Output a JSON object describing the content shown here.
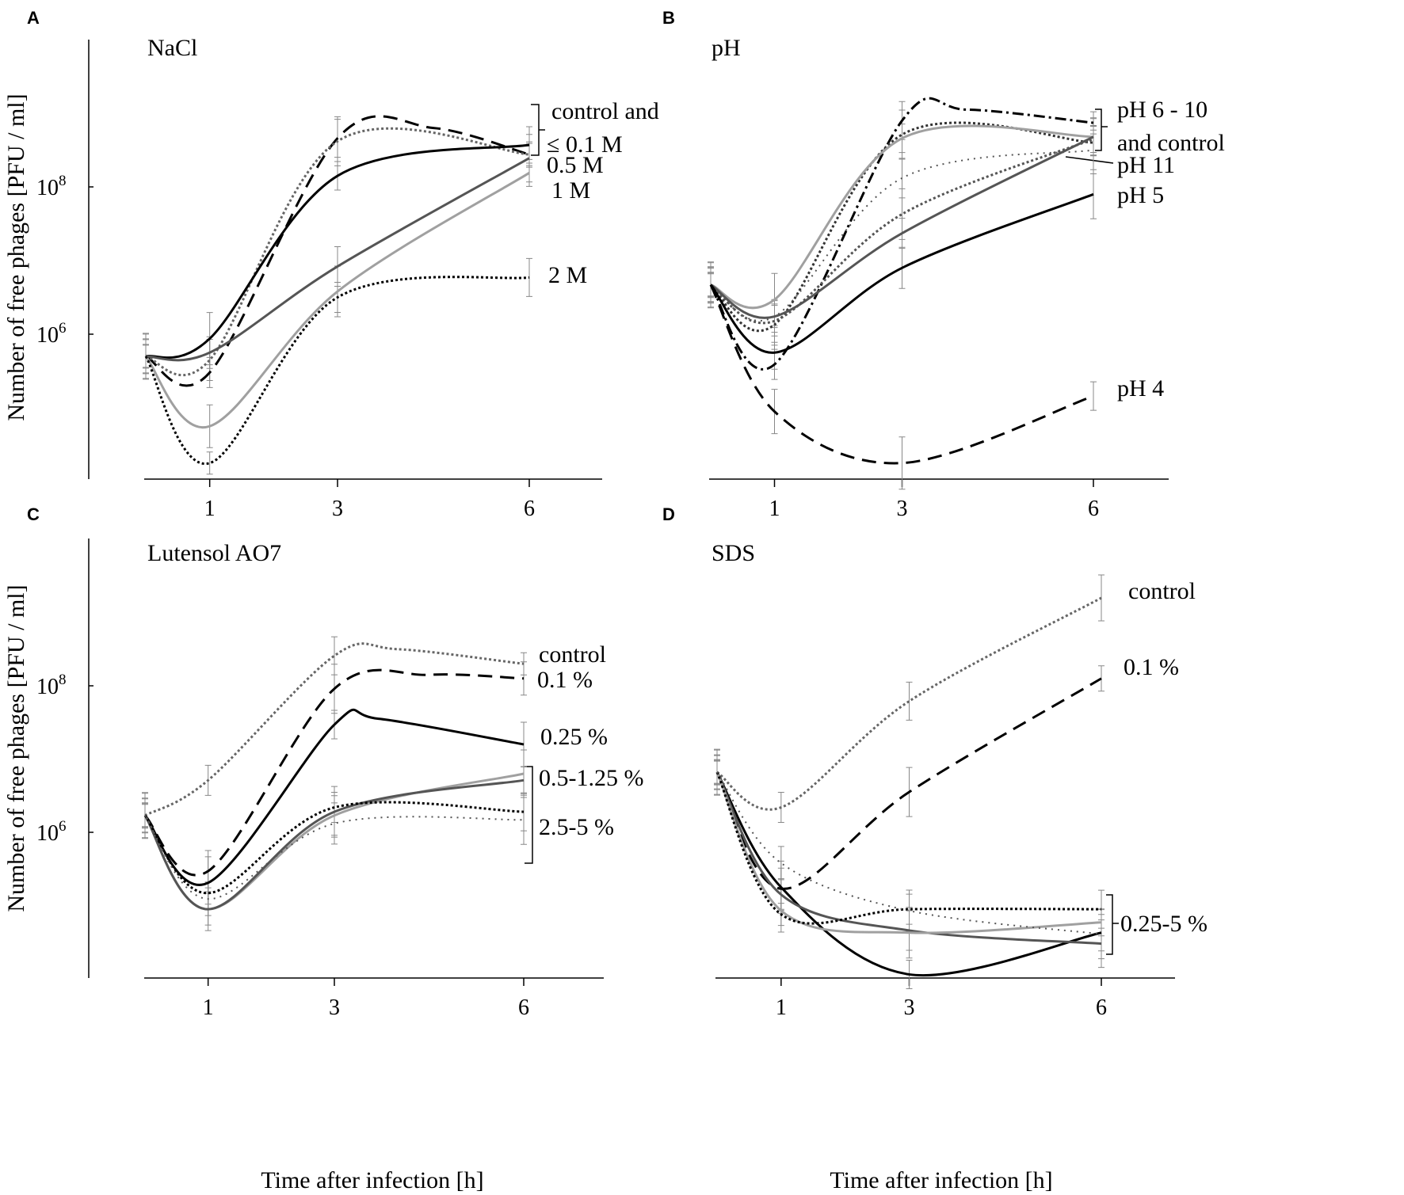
{
  "chart_data": [
    {
      "panel": "A",
      "title": "NaCl",
      "type": "line",
      "ylabel": "Number of free phages [PFU / ml]",
      "xlabel": "",
      "x_ticks": [
        "1",
        "3",
        "6"
      ],
      "y_ticks": [
        "10^8",
        "10^6"
      ],
      "annotations": [
        "control and",
        "≤ 0.1 M",
        "0.5 M",
        "1 M",
        "2 M"
      ],
      "series": [
        {
          "name": "control",
          "style": "dashed",
          "color": "#000000",
          "x": [
            0,
            1,
            3,
            4.5,
            6
          ],
          "log10": [
            5.7,
            5.48,
            8.66,
            8.8,
            8.44
          ]
        },
        {
          "name": "≤ 0.1 M",
          "style": "dotted",
          "color": "#666666",
          "x": [
            0,
            1,
            3,
            6
          ],
          "log10": [
            5.7,
            5.65,
            8.62,
            8.44
          ]
        },
        {
          "name": "0.5 M",
          "style": "solid",
          "color": "#000000",
          "x": [
            0,
            1,
            3,
            6
          ],
          "log10": [
            5.7,
            5.94,
            8.15,
            8.57
          ]
        },
        {
          "name": "0.5 M",
          "style": "solid",
          "color": "#555555",
          "x": [
            0,
            1,
            3,
            6
          ],
          "log10": [
            5.7,
            5.75,
            6.92,
            8.39
          ]
        },
        {
          "name": "1 M",
          "style": "solid",
          "color": "#a0a0a0",
          "x": [
            0,
            1,
            3,
            6
          ],
          "log10": [
            5.7,
            4.75,
            6.58,
            8.19
          ]
        },
        {
          "name": "2 M",
          "style": "dotted",
          "color": "#000000",
          "x": [
            0,
            1,
            3,
            6
          ],
          "log10": [
            5.7,
            4.25,
            6.5,
            6.77
          ]
        }
      ]
    },
    {
      "panel": "B",
      "title": "pH",
      "type": "line",
      "ylabel": "",
      "xlabel": "",
      "x_ticks": [
        "1",
        "3",
        "6"
      ],
      "y_ticks": [],
      "annotations": [
        "pH 6 - 10",
        "and control",
        "pH 11",
        "pH 5",
        "pH 4"
      ],
      "series": [
        {
          "name": "pH 6 - 10",
          "style": "dashdot",
          "color": "#000000",
          "x": [
            0,
            1,
            3,
            4,
            6
          ],
          "log10": [
            6.67,
            5.59,
            8.9,
            9.05,
            8.87
          ]
        },
        {
          "name": "pH 6 - 10",
          "style": "dotted",
          "color": "#333333",
          "x": [
            0,
            1,
            3,
            6
          ],
          "log10": [
            6.67,
            6.13,
            8.71,
            8.6
          ]
        },
        {
          "name": "control",
          "style": "solid",
          "color": "#a0a0a0",
          "x": [
            0,
            1,
            3,
            6
          ],
          "log10": [
            6.67,
            6.47,
            8.66,
            8.68
          ]
        },
        {
          "name": "pH 11",
          "style": "dotted-light",
          "color": "#555555",
          "x": [
            0,
            1,
            3,
            6
          ],
          "log10": [
            6.67,
            6.24,
            8.12,
            8.5
          ]
        },
        {
          "name": "pH 6 - 10",
          "style": "dotted",
          "color": "#555555",
          "x": [
            0,
            1,
            3,
            6
          ],
          "log10": [
            6.67,
            6.18,
            7.63,
            8.65
          ]
        },
        {
          "name": "pH 6 - 10",
          "style": "solid",
          "color": "#555555",
          "x": [
            0,
            1,
            3,
            6
          ],
          "log10": [
            6.67,
            6.24,
            7.37,
            8.68
          ]
        },
        {
          "name": "pH 5",
          "style": "solid",
          "color": "#000000",
          "x": [
            0,
            1,
            3,
            6
          ],
          "log10": [
            6.67,
            5.75,
            6.9,
            7.9
          ]
        },
        {
          "name": "pH 4",
          "style": "dashed",
          "color": "#000000",
          "x": [
            0,
            1,
            3,
            6
          ],
          "log10": [
            6.67,
            4.95,
            4.25,
            5.16
          ]
        }
      ]
    },
    {
      "panel": "C",
      "title": "Lutensol AO7",
      "type": "line",
      "ylabel": "Number of free phages [PFU / ml]",
      "xlabel": "Time after infection [h]",
      "x_ticks": [
        "1",
        "3",
        "6"
      ],
      "y_ticks": [
        "10^8",
        "10^6"
      ],
      "annotations": [
        "control",
        "0.1 %",
        "0.25 %",
        "0.5-1.25 %",
        "2.5-5 %"
      ],
      "series": [
        {
          "name": "control",
          "style": "dotted",
          "color": "#666666",
          "x": [
            0,
            1,
            3,
            4,
            6
          ],
          "log10": [
            6.23,
            6.71,
            8.41,
            8.5,
            8.3
          ]
        },
        {
          "name": "0.1 %",
          "style": "dashed",
          "color": "#000000",
          "x": [
            0,
            1,
            3,
            4.5,
            6
          ],
          "log10": [
            6.23,
            5.47,
            7.96,
            8.15,
            8.1
          ]
        },
        {
          "name": "0.25 %",
          "style": "solid",
          "color": "#000000",
          "x": [
            0,
            1,
            3,
            3.7,
            6
          ],
          "log10": [
            6.23,
            5.31,
            7.47,
            7.55,
            7.2
          ]
        },
        {
          "name": "0.5-1.25 %",
          "style": "solid",
          "color": "#a0a0a0",
          "x": [
            0,
            1,
            3,
            6
          ],
          "log10": [
            6.23,
            4.95,
            6.23,
            6.8
          ]
        },
        {
          "name": "0.5-1.25 %",
          "style": "solid",
          "color": "#555555",
          "x": [
            0,
            1,
            3,
            6
          ],
          "log10": [
            6.23,
            4.95,
            6.28,
            6.71
          ]
        },
        {
          "name": "2.5-5 %",
          "style": "dotted",
          "color": "#000000",
          "x": [
            0,
            1,
            3,
            6
          ],
          "log10": [
            6.23,
            5.17,
            6.34,
            6.28
          ]
        },
        {
          "name": "2.5-5 %",
          "style": "dotted-light",
          "color": "#555555",
          "x": [
            0,
            1,
            3,
            6
          ],
          "log10": [
            6.23,
            5.09,
            6.12,
            6.17
          ]
        }
      ]
    },
    {
      "panel": "D",
      "title": "SDS",
      "type": "line",
      "ylabel": "",
      "xlabel": "Time after infection [h]",
      "x_ticks": [
        "1",
        "3",
        "6"
      ],
      "y_ticks": [],
      "annotations": [
        "control",
        "0.1 %",
        "0.25-5 %"
      ],
      "series": [
        {
          "name": "control",
          "style": "dotted",
          "color": "#666666",
          "x": [
            0,
            1,
            3,
            6
          ],
          "log10": [
            6.82,
            6.34,
            7.79,
            9.2
          ]
        },
        {
          "name": "0.1 %",
          "style": "dashed",
          "color": "#000000",
          "x": [
            0,
            1,
            3,
            6
          ],
          "log10": [
            6.82,
            5.23,
            6.55,
            8.1
          ]
        },
        {
          "name": "0.25-5 %",
          "style": "solid",
          "color": "#000000",
          "x": [
            0,
            1,
            3,
            6
          ],
          "log10": [
            6.82,
            5.25,
            4.06,
            4.63
          ]
        },
        {
          "name": "0.25-5 %",
          "style": "solid",
          "color": "#555555",
          "x": [
            0,
            1,
            3,
            6
          ],
          "log10": [
            6.82,
            5.15,
            4.66,
            4.48
          ]
        },
        {
          "name": "0.25-5 %",
          "style": "solid",
          "color": "#a0a0a0",
          "x": [
            0,
            1,
            3,
            6
          ],
          "log10": [
            6.82,
            4.93,
            4.63,
            4.77
          ]
        },
        {
          "name": "0.25-5 %",
          "style": "dotted",
          "color": "#000000",
          "x": [
            0,
            1,
            3,
            6
          ],
          "log10": [
            6.82,
            4.88,
            4.95,
            4.95
          ]
        },
        {
          "name": "0.25-5 %",
          "style": "dotted-light",
          "color": "#555555",
          "x": [
            0,
            1,
            3,
            6
          ],
          "log10": [
            6.82,
            5.58,
            4.93,
            4.61
          ]
        }
      ]
    }
  ]
}
